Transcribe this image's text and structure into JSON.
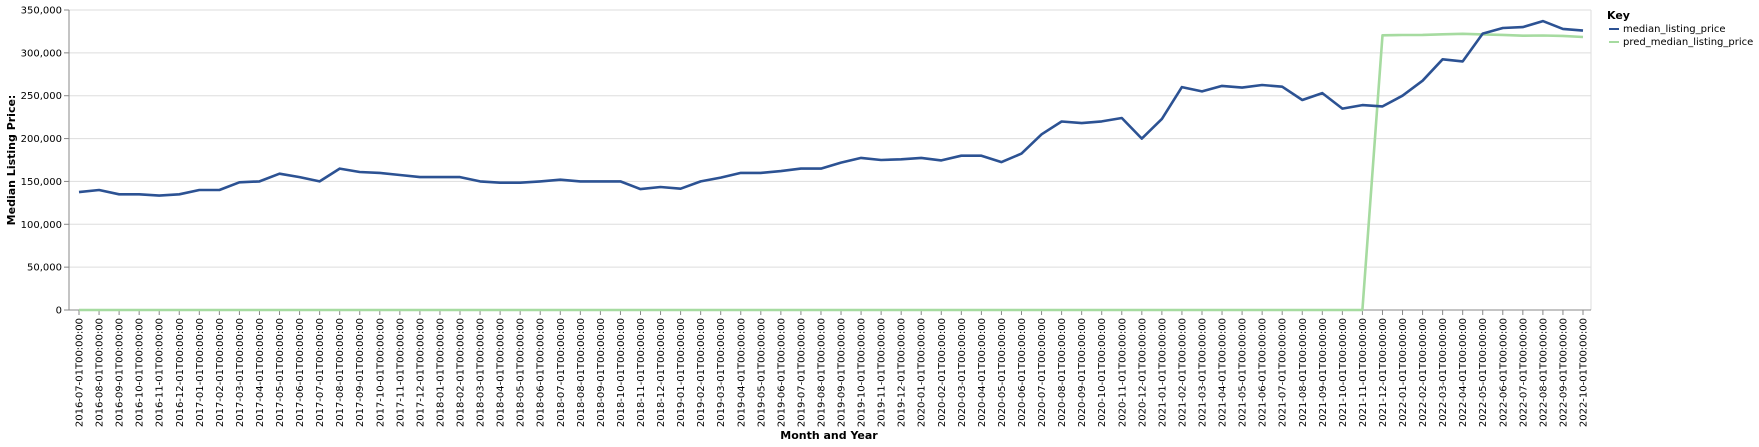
{
  "chart_data": {
    "type": "line",
    "xlabel": "Month and Year",
    "ylabel": "Median Listing Price:",
    "ylim": [
      0,
      350000
    ],
    "y_ticks": [
      0,
      50000,
      100000,
      150000,
      200000,
      250000,
      300000,
      350000
    ],
    "y_tick_labels": [
      "0",
      "50,000",
      "100,000",
      "150,000",
      "200,000",
      "250,000",
      "300,000",
      "350,000"
    ],
    "grid": true,
    "legend": {
      "title": "Key",
      "placement": "top-right"
    },
    "x": [
      "2016-07-01T00:00:00",
      "2016-08-01T00:00:00",
      "2016-09-01T00:00:00",
      "2016-10-01T00:00:00",
      "2016-11-01T00:00:00",
      "2016-12-01T00:00:00",
      "2017-01-01T00:00:00",
      "2017-02-01T00:00:00",
      "2017-03-01T00:00:00",
      "2017-04-01T00:00:00",
      "2017-05-01T00:00:00",
      "2017-06-01T00:00:00",
      "2017-07-01T00:00:00",
      "2017-08-01T00:00:00",
      "2017-09-01T00:00:00",
      "2017-10-01T00:00:00",
      "2017-11-01T00:00:00",
      "2017-12-01T00:00:00",
      "2018-01-01T00:00:00",
      "2018-02-01T00:00:00",
      "2018-03-01T00:00:00",
      "2018-04-01T00:00:00",
      "2018-05-01T00:00:00",
      "2018-06-01T00:00:00",
      "2018-07-01T00:00:00",
      "2018-08-01T00:00:00",
      "2018-09-01T00:00:00",
      "2018-10-01T00:00:00",
      "2018-11-01T00:00:00",
      "2018-12-01T00:00:00",
      "2019-01-01T00:00:00",
      "2019-02-01T00:00:00",
      "2019-03-01T00:00:00",
      "2019-04-01T00:00:00",
      "2019-05-01T00:00:00",
      "2019-06-01T00:00:00",
      "2019-07-01T00:00:00",
      "2019-08-01T00:00:00",
      "2019-09-01T00:00:00",
      "2019-10-01T00:00:00",
      "2019-11-01T00:00:00",
      "2019-12-01T00:00:00",
      "2020-01-01T00:00:00",
      "2020-02-01T00:00:00",
      "2020-03-01T00:00:00",
      "2020-04-01T00:00:00",
      "2020-05-01T00:00:00",
      "2020-06-01T00:00:00",
      "2020-07-01T00:00:00",
      "2020-08-01T00:00:00",
      "2020-09-01T00:00:00",
      "2020-10-01T00:00:00",
      "2020-11-01T00:00:00",
      "2020-12-01T00:00:00",
      "2021-01-01T00:00:00",
      "2021-02-01T00:00:00",
      "2021-03-01T00:00:00",
      "2021-04-01T00:00:00",
      "2021-05-01T00:00:00",
      "2021-06-01T00:00:00",
      "2021-07-01T00:00:00",
      "2021-08-01T00:00:00",
      "2021-09-01T00:00:00",
      "2021-10-01T00:00:00",
      "2021-11-01T00:00:00",
      "2021-12-01T00:00:00",
      "2022-01-01T00:00:00",
      "2022-02-01T00:00:00",
      "2022-03-01T00:00:00",
      "2022-04-01T00:00:00",
      "2022-05-01T00:00:00",
      "2022-06-01T00:00:00",
      "2022-07-01T00:00:00",
      "2022-08-01T00:00:00",
      "2022-09-01T00:00:00",
      "2022-10-01T00:00:00"
    ],
    "series": [
      {
        "name": "median_listing_price",
        "color": "#2c5293",
        "values": [
          137500,
          140000,
          135000,
          135000,
          133500,
          135000,
          140000,
          140000,
          149000,
          150000,
          159000,
          155000,
          150000,
          165000,
          161000,
          160000,
          157500,
          155000,
          155000,
          155000,
          150000,
          148500,
          148500,
          150000,
          152000,
          150000,
          150000,
          150000,
          141000,
          143500,
          141500,
          150000,
          154500,
          160000,
          160000,
          162000,
          165000,
          165000,
          172000,
          177500,
          175000,
          175800,
          177500,
          174500,
          180000,
          180000,
          172500,
          182500,
          205000,
          219900,
          218000,
          220000,
          224000,
          200000,
          223000,
          260000,
          255000,
          261500,
          259500,
          262500,
          260500,
          245000,
          253000,
          235000,
          239000,
          237500,
          250000,
          267500,
          292500,
          290000,
          322500,
          329000,
          330000,
          337000,
          328000,
          326000
        ]
      },
      {
        "name": "pred_median_listing_price",
        "color": "#a6dba0",
        "values": [
          0,
          0,
          0,
          0,
          0,
          0,
          0,
          0,
          0,
          0,
          0,
          0,
          0,
          0,
          0,
          0,
          0,
          0,
          0,
          0,
          0,
          0,
          0,
          0,
          0,
          0,
          0,
          0,
          0,
          0,
          0,
          0,
          0,
          0,
          0,
          0,
          0,
          0,
          0,
          0,
          0,
          0,
          0,
          0,
          0,
          0,
          0,
          0,
          0,
          0,
          0,
          0,
          0,
          0,
          0,
          0,
          0,
          0,
          0,
          0,
          0,
          0,
          0,
          0,
          0,
          320500,
          320800,
          321000,
          321600,
          322200,
          321500,
          321000,
          320000,
          320300,
          319800,
          318500
        ]
      }
    ]
  }
}
